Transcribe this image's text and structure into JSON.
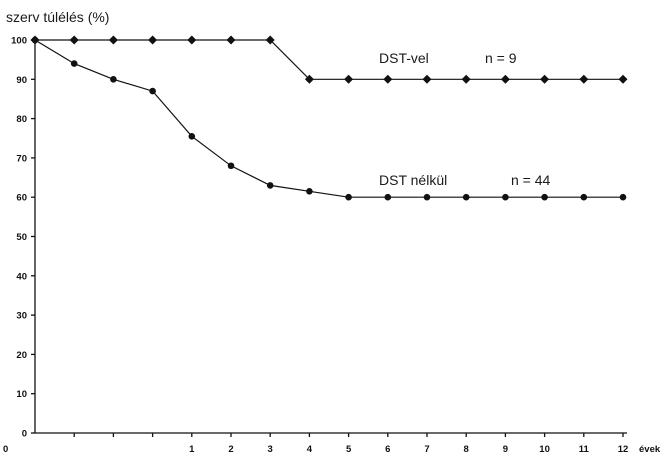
{
  "chart_data": {
    "type": "line",
    "title": "",
    "ylabel": "szerv túlélés (%)",
    "xlabel": "évek",
    "ylim": [
      0,
      100
    ],
    "xlim": [
      -3,
      12
    ],
    "grid": false,
    "y_ticks": [
      "0",
      "10",
      "20",
      "30",
      "40",
      "50",
      "60",
      "70",
      "80",
      "90",
      "100"
    ],
    "x_origin_label": "0",
    "x_ticks": [
      "1",
      "2",
      "3",
      "4",
      "5",
      "6",
      "7",
      "8",
      "9",
      "10",
      "11",
      "12"
    ],
    "series": [
      {
        "name": "DST-vel",
        "n_label": "n = 9",
        "marker": "diamond",
        "x": [
          -3,
          -2,
          -1,
          0,
          1,
          2,
          3,
          4,
          5,
          6,
          7,
          8,
          9,
          10,
          11,
          12
        ],
        "y": [
          100,
          100,
          100,
          100,
          100,
          100,
          100,
          90,
          90,
          90,
          90,
          90,
          90,
          90,
          90,
          90
        ]
      },
      {
        "name": "DST nélkül",
        "n_label": "n = 44",
        "marker": "circle",
        "x": [
          -3,
          -2,
          -1,
          0,
          1,
          2,
          3,
          4,
          5,
          6,
          7,
          8,
          9,
          10,
          11,
          12
        ],
        "y": [
          100,
          94,
          90,
          87,
          75.5,
          68,
          63,
          61.5,
          60,
          60,
          60,
          60,
          60,
          60,
          60,
          60
        ]
      }
    ]
  }
}
